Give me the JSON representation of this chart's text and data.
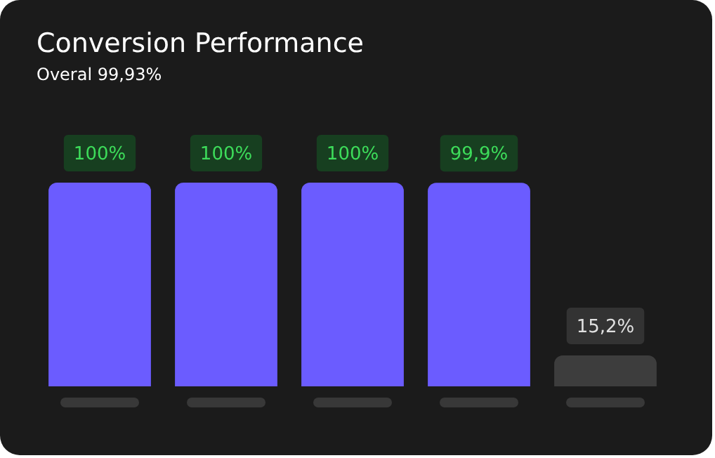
{
  "chart_data": {
    "type": "bar",
    "title": "Conversion Performance",
    "subtitle": "Overal 99,93%",
    "categories": [
      null,
      null,
      null,
      null,
      null
    ],
    "values": [
      100,
      100,
      100,
      99.9,
      15.2
    ],
    "colors": [
      "#6b5cff",
      "#6b5cff",
      "#6b5cff",
      "#6b5cff",
      "#3d3d3d"
    ],
    "value_labels": [
      "100%",
      "100%",
      "100%",
      "99,9%",
      "15,2%"
    ]
  }
}
